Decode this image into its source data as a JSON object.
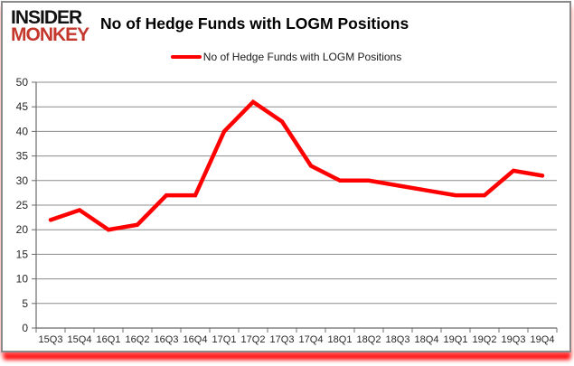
{
  "branding": {
    "logo_line1": "INSIDER",
    "logo_line2": "MONKEY",
    "logo_color_primary": "#111111",
    "logo_color_secondary": "#c4372c"
  },
  "header": {
    "title": "No of Hedge Funds with LOGM Positions"
  },
  "legend": {
    "label": "No of Hedge Funds with LOGM Positions",
    "line_color": "#ff0000"
  },
  "chart_data": {
    "type": "line",
    "title": "No of Hedge Funds with LOGM Positions",
    "categories": [
      "15Q3",
      "15Q4",
      "16Q1",
      "16Q2",
      "16Q3",
      "16Q4",
      "17Q1",
      "17Q2",
      "17Q3",
      "17Q4",
      "18Q1",
      "18Q2",
      "18Q3",
      "18Q4",
      "19Q1",
      "19Q2",
      "19Q3",
      "19Q4"
    ],
    "series": [
      {
        "name": "No of Hedge Funds with LOGM Positions",
        "color": "#ff0000",
        "values": [
          22,
          24,
          20,
          21,
          27,
          27,
          40,
          46,
          42,
          33,
          30,
          30,
          29,
          28,
          27,
          27,
          32,
          31
        ]
      }
    ],
    "xlabel": "",
    "ylabel": "",
    "ylim": [
      0,
      50
    ],
    "ytick_step": 5,
    "yticks": [
      0,
      5,
      10,
      15,
      20,
      25,
      30,
      35,
      40,
      45,
      50
    ],
    "grid": "horizontal",
    "grid_color": "#8c8c8c",
    "axis_color": "#6b6b6b",
    "label_color": "#262626",
    "legend_position": "top-center"
  }
}
